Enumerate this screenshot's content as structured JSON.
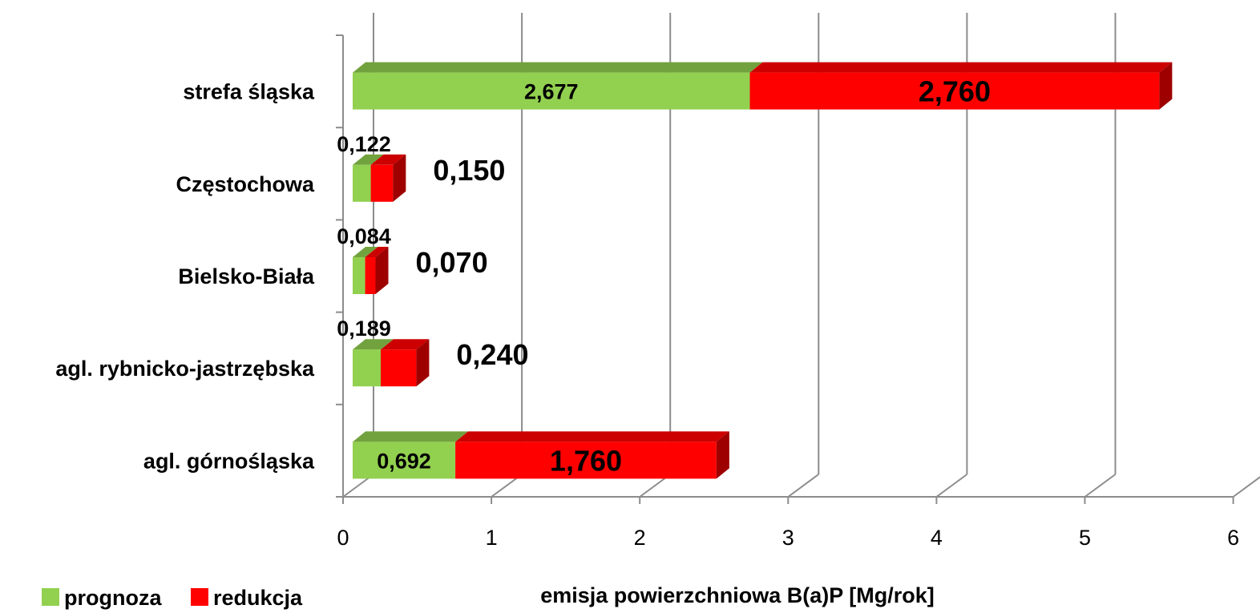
{
  "chart_data": {
    "type": "bar",
    "orientation": "horizontal",
    "stacked": true,
    "three_d": true,
    "categories": [
      "strefa śląska",
      "Częstochowa",
      "Bielsko-Biała",
      "agl. rybnicko-jastrzębska",
      "agl. górnośląska"
    ],
    "series": [
      {
        "name": "prognoza",
        "color": "#92d050",
        "values": [
          2.677,
          0.122,
          0.084,
          0.189,
          0.692
        ],
        "labels": [
          "2,677",
          "0,122",
          "0,084",
          "0,189",
          "0,692"
        ]
      },
      {
        "name": "redukcja",
        "color": "#ff0000",
        "values": [
          2.76,
          0.15,
          0.07,
          0.24,
          1.76
        ],
        "labels": [
          "2,760",
          "0,150",
          "0,070",
          "0,240",
          "1,760"
        ]
      }
    ],
    "xlabel": "emisja powierzchniowa B(a)P [Mg/rok]",
    "ylabel": "",
    "xlim": [
      0,
      6
    ],
    "xticks": [
      "0",
      "1",
      "2",
      "3",
      "4",
      "5",
      "6"
    ],
    "grid": true,
    "legend_position": "bottom-left"
  }
}
